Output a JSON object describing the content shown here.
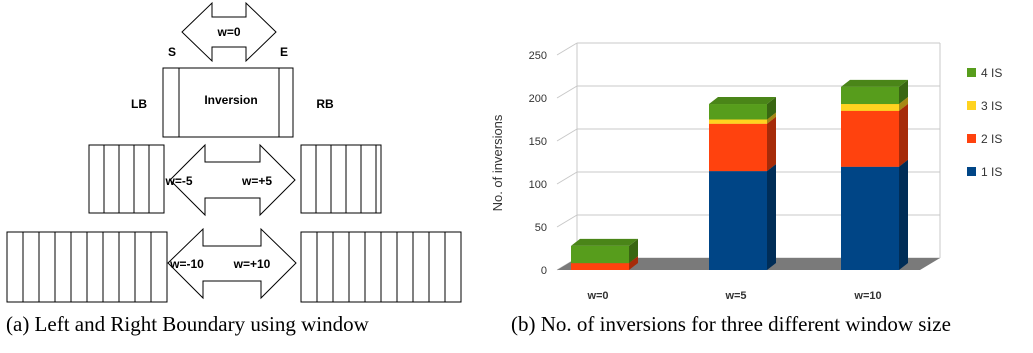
{
  "figure_a": {
    "top_arrow_label": "w=0",
    "start_label": "S",
    "end_label": "E",
    "inversion_label": "Inversion",
    "left_boundary_label": "LB",
    "right_boundary_label": "RB",
    "w5_left_label": "w=-5",
    "w5_right_label": "w=+5",
    "w10_left_label": "w=-10",
    "w10_right_label": "w=+10"
  },
  "captions": {
    "a": "(a) Left and Right Boundary using window",
    "b": "(b) No. of inversions for three different window size"
  },
  "chart_data": {
    "type": "bar",
    "stacked": true,
    "three_d": true,
    "categories": [
      "w=0",
      "w=5",
      "w=10"
    ],
    "series": [
      {
        "name": "1 IS",
        "color": "#004586",
        "values": [
          0,
          115,
          120
        ]
      },
      {
        "name": "2 IS",
        "color": "#ff420e",
        "values": [
          8,
          55,
          65
        ]
      },
      {
        "name": "3 IS",
        "color": "#ffd320",
        "values": [
          0,
          5,
          8
        ]
      },
      {
        "name": "4 IS",
        "color": "#579d1c",
        "values": [
          20,
          18,
          20
        ]
      }
    ],
    "ylabel": "No. of inversions",
    "xlabel": "",
    "ylim": [
      0,
      250
    ],
    "yticks": [
      0,
      50,
      100,
      150,
      200,
      250
    ],
    "grid": true,
    "legend_position": "right",
    "legend_order": [
      "4 IS",
      "3 IS",
      "2 IS",
      "1 IS"
    ]
  }
}
